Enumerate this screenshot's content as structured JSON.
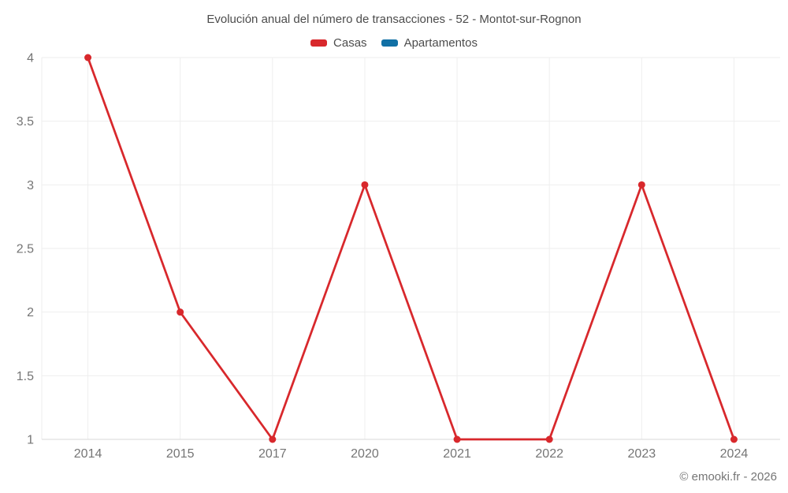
{
  "footer": {
    "copyright": "© emooki.fr - 2026"
  },
  "chart_data": {
    "type": "line",
    "title": "Evolución anual del número de transacciones - 52 - Montot-sur-Rognon",
    "categories": [
      "2014",
      "2015",
      "2017",
      "2020",
      "2021",
      "2022",
      "2023",
      "2024"
    ],
    "series": [
      {
        "name": "Casas",
        "color": "#d8282c",
        "values": [
          4,
          2,
          1,
          3,
          1,
          1,
          3,
          1
        ]
      },
      {
        "name": "Apartamentos",
        "color": "#1170a5",
        "values": []
      }
    ],
    "yaxis": {
      "min": 1,
      "max": 4,
      "step": 0.5,
      "ticks": [
        "1",
        "1.5",
        "2",
        "2.5",
        "3",
        "3.5",
        "4"
      ]
    },
    "xlabel": "",
    "ylabel": "",
    "grid": true,
    "legend_position": "top"
  }
}
